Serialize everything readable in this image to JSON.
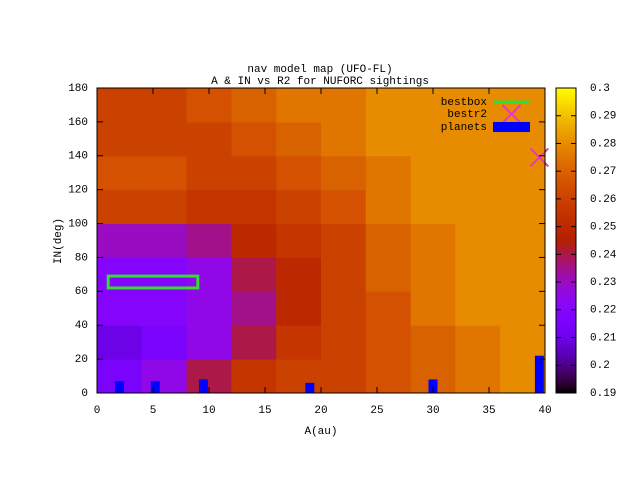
{
  "chart_data": {
    "type": "heatmap",
    "title": "nav model map (UFO-FL)",
    "subtitle": "A & IN vs R2 for NUFORC sightings",
    "xlabel": "A(au)",
    "ylabel": "IN(deg)",
    "xlim": [
      0,
      40
    ],
    "ylim": [
      0,
      180
    ],
    "xticks": [
      0,
      5,
      10,
      15,
      20,
      25,
      30,
      35,
      40
    ],
    "yticks": [
      0,
      20,
      40,
      60,
      80,
      100,
      120,
      140,
      160,
      180
    ],
    "cblim": [
      0.19,
      0.3
    ],
    "cbticks": [
      0.19,
      0.2,
      0.21,
      0.22,
      0.23,
      0.24,
      0.25,
      0.26,
      0.27,
      0.28,
      0.29,
      0.3
    ],
    "xbins": [
      0,
      4,
      8,
      12,
      16,
      20,
      24,
      28,
      32,
      36,
      40
    ],
    "ybins": [
      0,
      20,
      40,
      60,
      80,
      100,
      120,
      140,
      160,
      180
    ],
    "z": [
      [
        0.215,
        0.225,
        0.24,
        0.255,
        0.26,
        0.26,
        0.265,
        0.27,
        0.275,
        0.28
      ],
      [
        0.21,
        0.215,
        0.225,
        0.24,
        0.255,
        0.26,
        0.265,
        0.27,
        0.275,
        0.28
      ],
      [
        0.22,
        0.22,
        0.225,
        0.235,
        0.25,
        0.26,
        0.265,
        0.275,
        0.28,
        0.28
      ],
      [
        0.22,
        0.22,
        0.225,
        0.24,
        0.25,
        0.26,
        0.27,
        0.275,
        0.28,
        0.28
      ],
      [
        0.23,
        0.23,
        0.235,
        0.25,
        0.255,
        0.26,
        0.27,
        0.275,
        0.28,
        0.28
      ],
      [
        0.26,
        0.26,
        0.255,
        0.255,
        0.26,
        0.265,
        0.275,
        0.28,
        0.28,
        0.28
      ],
      [
        0.265,
        0.265,
        0.26,
        0.26,
        0.265,
        0.27,
        0.275,
        0.28,
        0.28,
        0.28
      ],
      [
        0.26,
        0.26,
        0.26,
        0.265,
        0.27,
        0.275,
        0.28,
        0.28,
        0.28,
        0.28
      ],
      [
        0.26,
        0.26,
        0.265,
        0.27,
        0.275,
        0.275,
        0.28,
        0.28,
        0.28,
        0.28
      ]
    ],
    "legend": "upper right",
    "overlays": {
      "bestbox": {
        "name": "bestbox",
        "color": "#33dd33",
        "x": [
          1,
          9
        ],
        "y": [
          62,
          69
        ]
      },
      "bestr2": {
        "name": "bestr2",
        "color": "#ee33cc",
        "x": 39.5,
        "y": 139
      },
      "planets": {
        "name": "planets",
        "color": "#0000ff",
        "x": [
          2,
          5.2,
          9.5,
          19,
          30,
          39.5
        ],
        "values": [
          7,
          7,
          8,
          6,
          8,
          22
        ]
      }
    }
  }
}
